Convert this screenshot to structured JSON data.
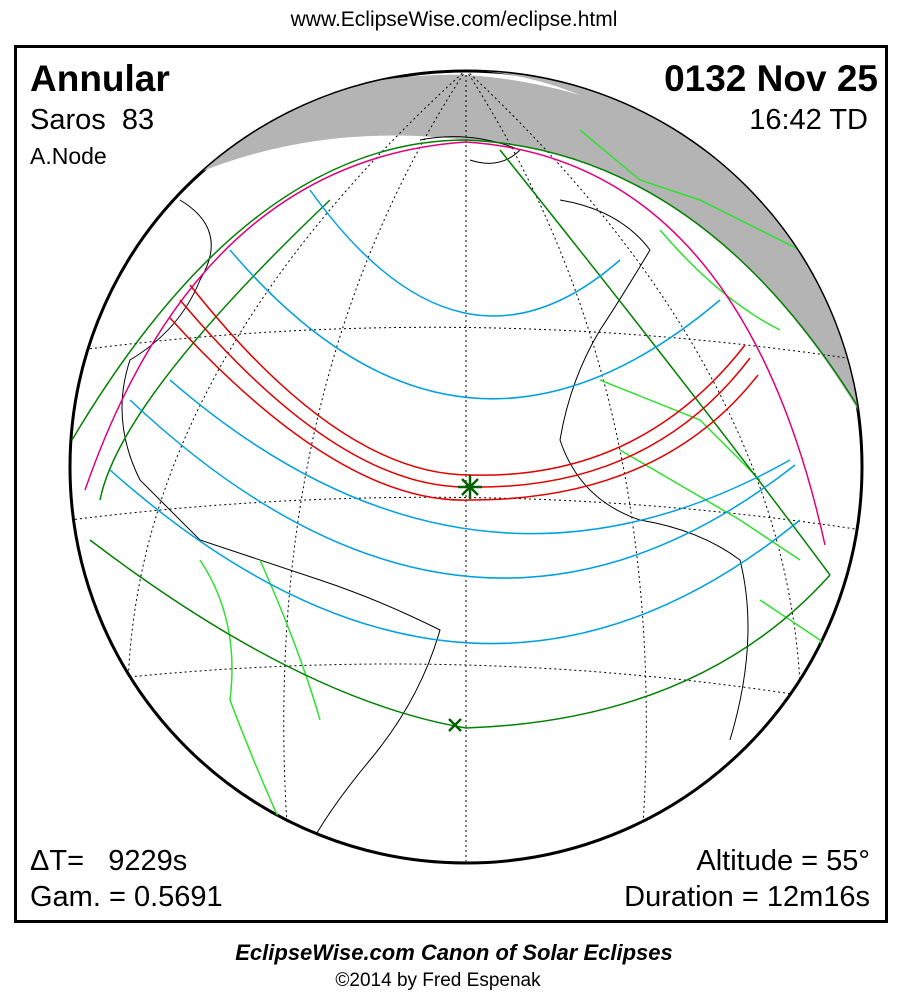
{
  "header": {
    "url": "www.EclipseWise.com/eclipse.html"
  },
  "eclipse": {
    "type": "Annular",
    "saros": "Saros  83",
    "node": "A.Node",
    "date": "0132 Nov 25",
    "time": "16:42 TD",
    "delta_t": "ΔT=   9229s",
    "gamma": "Gam. = 0.5691",
    "altitude": "Altitude = 55°",
    "duration": "Duration = 12m16s"
  },
  "footer": {
    "title": "EclipseWise.com Canon of Solar Eclipses",
    "copyright": "©2014 by Fred Espenak"
  },
  "colors": {
    "central_path": "#e00000",
    "penumbral_limits": "#008000",
    "partial_curves": "#00a0e0",
    "rise_set": "#e0007f",
    "borders": "#30e030",
    "night": "#b4b4b4"
  },
  "markers": {
    "greatest_eclipse": "star-icon",
    "penumbra_point": "x-icon"
  }
}
